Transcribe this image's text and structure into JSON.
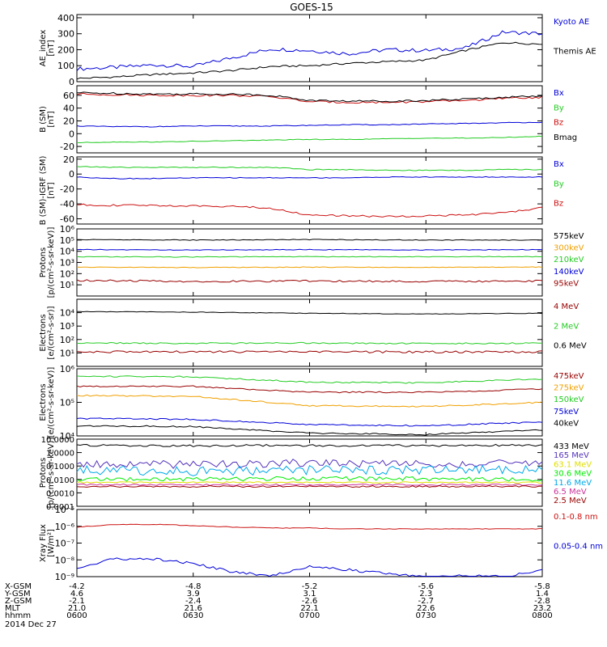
{
  "title": "GOES-15",
  "date_label": "2014 Dec 27",
  "colors": {
    "black": "#000000",
    "blue": "#0000d8",
    "green": "#22cc22",
    "red": "#cc1111",
    "orange": "#f0a000",
    "dark_red": "#990000",
    "cyan": "#00a8e8",
    "yellow": "#e0e000",
    "lime": "#00ee00",
    "pink": "#cc3399",
    "purple": "#5533bb"
  },
  "x_axis": {
    "rows": [
      {
        "label": "X-GSM",
        "values": [
          "-4.2",
          "-4.8",
          "-5.2",
          "-5.6",
          "-5.8"
        ]
      },
      {
        "label": "Y-GSM",
        "values": [
          "4.6",
          "3.9",
          "3.1",
          "2.3",
          "1.4"
        ]
      },
      {
        "label": "Z-GSM",
        "values": [
          "-2.1",
          "-2.4",
          "-2.6",
          "-2.7",
          "-2.8"
        ]
      },
      {
        "label": "MLT",
        "values": [
          "21.0",
          "21.6",
          "22.1",
          "22.6",
          "23.2"
        ]
      },
      {
        "label": "hhmm",
        "values": [
          "0600",
          "0630",
          "0700",
          "0730",
          "0800"
        ]
      }
    ]
  },
  "chart_data": [
    {
      "id": "ae",
      "type": "line",
      "ylabel": "AE_index\n[nT]",
      "ylim": [
        0,
        420
      ],
      "yscale": "linear",
      "yticks": [
        0,
        100,
        200,
        300,
        400
      ],
      "ytick_labels": [
        "0",
        "100",
        "200",
        "300",
        "400"
      ],
      "x": [
        "06:00",
        "06:10",
        "06:20",
        "06:30",
        "06:40",
        "06:50",
        "07:00",
        "07:10",
        "07:20",
        "07:30",
        "07:40",
        "07:50",
        "08:00"
      ],
      "series": [
        {
          "name": "Kyoto AE",
          "color": "blue",
          "values": [
            80,
            90,
            105,
            95,
            150,
            205,
            195,
            175,
            200,
            195,
            210,
            310,
            300
          ],
          "jitter": 12
        },
        {
          "name": "Themis AE",
          "color": "black",
          "values": [
            20,
            30,
            45,
            55,
            70,
            95,
            100,
            115,
            125,
            135,
            195,
            245,
            235
          ],
          "jitter": 6
        }
      ]
    },
    {
      "id": "bsm",
      "type": "line",
      "ylabel": "B (SM)\n[nT]",
      "ylim": [
        -30,
        75
      ],
      "yscale": "linear",
      "yticks": [
        -20,
        0,
        20,
        40,
        60
      ],
      "ytick_labels": [
        "-20",
        "0",
        "20",
        "40",
        "60"
      ],
      "x": [
        "06:00",
        "06:10",
        "06:20",
        "06:30",
        "06:40",
        "06:50",
        "07:00",
        "07:10",
        "07:20",
        "07:30",
        "07:40",
        "07:50",
        "08:00"
      ],
      "series": [
        {
          "name": "Bx",
          "color": "blue",
          "values": [
            12,
            11,
            11,
            12,
            12,
            12,
            13,
            14,
            14,
            15,
            16,
            17,
            18
          ],
          "jitter": 0.6
        },
        {
          "name": "By",
          "color": "green",
          "values": [
            -14,
            -13,
            -13,
            -12,
            -11,
            -10,
            -9,
            -9,
            -8,
            -7,
            -7,
            -6,
            -4
          ],
          "jitter": 0.5
        },
        {
          "name": "Bz",
          "color": "red",
          "values": [
            62,
            61,
            60,
            60,
            60,
            58,
            50,
            49,
            49,
            50,
            52,
            55,
            57
          ],
          "jitter": 1.5
        },
        {
          "name": "Bmag",
          "color": "black",
          "values": [
            64,
            63,
            62,
            62,
            62,
            60,
            52,
            51,
            51,
            52,
            54,
            57,
            59
          ],
          "jitter": 1.5
        }
      ]
    },
    {
      "id": "bigrf",
      "type": "line",
      "ylabel": "B (SM)-IGRF (SM)\n[nT]",
      "ylim": [
        -67,
        23
      ],
      "yscale": "linear",
      "yticks": [
        -60,
        -40,
        -20,
        0,
        20
      ],
      "ytick_labels": [
        "-60",
        "-40",
        "-20",
        "0",
        "20"
      ],
      "x": [
        "06:00",
        "06:10",
        "06:20",
        "06:30",
        "06:40",
        "06:50",
        "07:00",
        "07:10",
        "07:20",
        "07:30",
        "07:40",
        "07:50",
        "08:00"
      ],
      "series": [
        {
          "name": "Bx",
          "color": "blue",
          "values": [
            -4,
            -6,
            -6,
            -5,
            -5,
            -5,
            -5,
            -5,
            -4,
            -4,
            -4,
            -4,
            -4
          ],
          "jitter": 0.5
        },
        {
          "name": "By",
          "color": "green",
          "values": [
            10,
            9,
            9,
            9,
            9,
            9,
            6,
            6,
            5,
            5,
            5,
            6,
            6
          ],
          "jitter": 0.6
        },
        {
          "name": "Bz",
          "color": "red",
          "values": [
            -41,
            -42,
            -42,
            -43,
            -43,
            -46,
            -55,
            -56,
            -57,
            -56,
            -55,
            -52,
            -45
          ],
          "jitter": 1.2
        }
      ]
    },
    {
      "id": "protons_mev",
      "type": "line",
      "ylabel": "Protons\n[p/(cm²-s-sr-keV)]",
      "ylim": [
        1,
        1000000
      ],
      "yscale": "log",
      "yticks": [
        10,
        100,
        1000,
        10000,
        100000,
        1000000
      ],
      "ytick_labels": [
        "10¹",
        "10²",
        "10³",
        "10⁴",
        "10⁵",
        "10⁶"
      ],
      "x": [
        "06:00",
        "06:30",
        "07:00",
        "07:30",
        "08:00"
      ],
      "series": [
        {
          "name": "575keV",
          "color": "black",
          "values": [
            110000,
            100000,
            110000,
            100000,
            100000
          ],
          "jitter": 0.03
        },
        {
          "name": "300keV",
          "color": "orange",
          "values": [
            380,
            350,
            380,
            360,
            380
          ],
          "jitter": 0.03
        },
        {
          "name": "210keV",
          "color": "green",
          "values": [
            3200,
            3100,
            3300,
            3200,
            3300
          ],
          "jitter": 0.03
        },
        {
          "name": "140keV",
          "color": "blue",
          "values": [
            14000,
            13000,
            14000,
            13000,
            14000
          ],
          "jitter": 0.03
        },
        {
          "name": "95keV",
          "color": "dark_red",
          "values": [
            25,
            20,
            22,
            20,
            22
          ],
          "jitter": 0.08
        }
      ]
    },
    {
      "id": "electrons_mev",
      "type": "line",
      "ylabel": "Electrons\n[e/(cm²-s-sr)]",
      "ylim": [
        1,
        100000
      ],
      "yscale": "log",
      "yticks": [
        10,
        100,
        1000,
        10000
      ],
      "ytick_labels": [
        "10¹",
        "10²",
        "10³",
        "10⁴"
      ],
      "x": [
        "06:00",
        "06:30",
        "07:00",
        "07:30",
        "08:00"
      ],
      "series": [
        {
          "name": "4 MeV",
          "color": "dark_red",
          "values": [
            12,
            12,
            12,
            12,
            12
          ],
          "jitter": 0.08
        },
        {
          "name": "2 MeV",
          "color": "green",
          "values": [
            55,
            52,
            55,
            50,
            55
          ],
          "jitter": 0.05
        },
        {
          "name": "0.6 MeV",
          "color": "black",
          "values": [
            12000,
            11000,
            9000,
            8000,
            9000
          ],
          "jitter": 0.02
        }
      ]
    },
    {
      "id": "electrons_kev",
      "type": "line",
      "ylabel": "Electrons\n[e/(cm²-s-sr-keV)]",
      "ylim": [
        10000,
        1000000
      ],
      "yscale": "log",
      "yticks": [
        10000,
        100000,
        1000000
      ],
      "ytick_labels": [
        "10⁴",
        "10⁵",
        "10⁶"
      ],
      "x": [
        "06:00",
        "06:30",
        "07:00",
        "07:30",
        "08:00"
      ],
      "series": [
        {
          "name": "475keV",
          "color": "dark_red",
          "values": [
            300000,
            300000,
            200000,
            200000,
            250000
          ],
          "jitter": 0.02
        },
        {
          "name": "275keV",
          "color": "orange",
          "values": [
            160000,
            150000,
            80000,
            75000,
            100000
          ],
          "jitter": 0.02
        },
        {
          "name": "150keV",
          "color": "green",
          "values": [
            600000,
            580000,
            400000,
            380000,
            500000
          ],
          "jitter": 0.02
        },
        {
          "name": "75keV",
          "color": "blue",
          "values": [
            33000,
            31000,
            22000,
            20000,
            26000
          ],
          "jitter": 0.02
        },
        {
          "name": "40keV",
          "color": "black",
          "values": [
            20000,
            19000,
            12000,
            11000,
            15000
          ],
          "jitter": 0.02
        }
      ]
    },
    {
      "id": "protons_hi",
      "type": "line",
      "ylabel": "Protons\n[p/(cm²-s-sr-keV)]",
      "ylim": [
        0.0001,
        10
      ],
      "yscale": "log",
      "yticks": [
        0.0001,
        0.001,
        0.01,
        0.1,
        1,
        10
      ],
      "ytick_labels": [
        "0.0001",
        "0.0010",
        "0.0100",
        "0.1000",
        "1.0000",
        "10.0000"
      ],
      "x": [
        "06:00",
        "06:30",
        "07:00",
        "07:30",
        "08:00"
      ],
      "series": [
        {
          "name": "433 MeV",
          "color": "black",
          "values": [
            3.5,
            3.2,
            3.4,
            3.3,
            3.5
          ],
          "jitter": 0.08
        },
        {
          "name": "165 MeV",
          "color": "purple",
          "values": [
            0.15,
            0.12,
            0.18,
            0.14,
            0.16
          ],
          "jitter": 0.3
        },
        {
          "name": "63.1 MeV",
          "color": "yellow",
          "values": [
            0.006,
            0.006,
            0.006,
            0.006,
            0.006
          ],
          "jitter": 0.05
        },
        {
          "name": "30.6 MeV",
          "color": "lime",
          "values": [
            0.01,
            0.01,
            0.012,
            0.011,
            0.01
          ],
          "jitter": 0.15
        },
        {
          "name": "11.6 MeV",
          "color": "cyan",
          "values": [
            0.05,
            0.04,
            0.05,
            0.05,
            0.05
          ],
          "jitter": 0.35
        },
        {
          "name": "6.5 MeV",
          "color": "pink",
          "values": [
            0.004,
            0.004,
            0.004,
            0.004,
            0.004
          ],
          "jitter": 0.06
        },
        {
          "name": "2.5 MeV",
          "color": "dark_red",
          "values": [
            0.003,
            0.003,
            0.003,
            0.003,
            0.003
          ],
          "jitter": 0.06
        }
      ]
    },
    {
      "id": "xray",
      "type": "line",
      "ylabel": "Xray Flux\n[W/m²]",
      "ylim": [
        1e-09,
        1e-05
      ],
      "yscale": "log",
      "yticks": [
        1e-09,
        1e-08,
        1e-07,
        1e-06,
        1e-05
      ],
      "ytick_labels": [
        "10⁻⁹",
        "10⁻⁸",
        "10⁻⁷",
        "10⁻⁶",
        "10⁻⁵"
      ],
      "x": [
        "06:00",
        "06:10",
        "06:20",
        "06:30",
        "06:40",
        "06:50",
        "07:00",
        "07:10",
        "07:20",
        "07:30",
        "07:40",
        "07:50",
        "08:00"
      ],
      "series": [
        {
          "name": "0.1-0.8 nm",
          "color": "red",
          "values": [
            9e-07,
            1.3e-06,
            1.3e-06,
            1.1e-06,
            9e-07,
            8e-07,
            8e-07,
            7e-07,
            7e-07,
            7e-07,
            7e-07,
            7e-07,
            7e-07
          ],
          "jitter": 0.02
        },
        {
          "name": "0.05-0.4 nm",
          "color": "blue",
          "values": [
            3e-09,
            1.2e-08,
            1.1e-08,
            6e-09,
            2e-09,
            1.2e-09,
            4e-09,
            2.5e-09,
            1.5e-09,
            1e-09,
            1.2e-09,
            1e-09,
            2.5e-09
          ],
          "jitter": 0.08
        }
      ]
    }
  ]
}
